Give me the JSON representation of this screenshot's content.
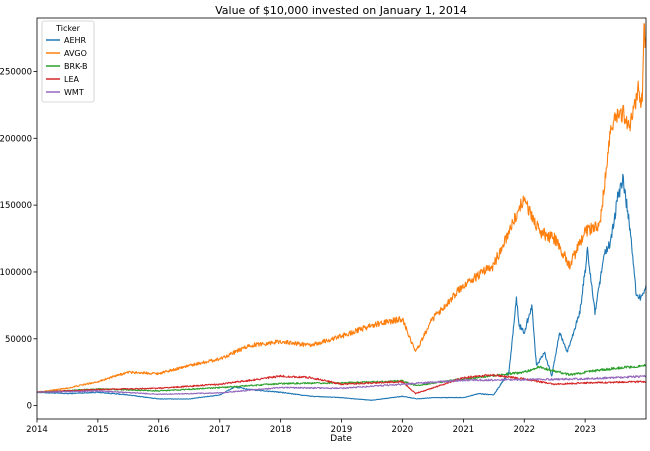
{
  "chart_data": {
    "type": "line",
    "title": "Value of $10,000 invested on January 1, 2014",
    "xlabel": "Date",
    "ylabel": "",
    "xlim": [
      "2014-01-01",
      "2024-01-01"
    ],
    "ylim": [
      -10000,
      290000
    ],
    "x_ticks": [
      "2014",
      "2015",
      "2016",
      "2017",
      "2018",
      "2019",
      "2020",
      "2021",
      "2022",
      "2023"
    ],
    "y_ticks": [
      0,
      50000,
      100000,
      150000,
      200000,
      250000
    ],
    "grid": false,
    "legend": {
      "title": "Ticker",
      "placement": "top-left"
    },
    "series": [
      {
        "name": "AEHR",
        "color": "#1f77b4",
        "points": [
          [
            "2014-01-01",
            10000
          ],
          [
            "2014-07-01",
            9000
          ],
          [
            "2015-01-01",
            10000
          ],
          [
            "2015-07-01",
            8000
          ],
          [
            "2016-01-01",
            5000
          ],
          [
            "2016-07-01",
            5000
          ],
          [
            "2017-01-01",
            8000
          ],
          [
            "2017-04-01",
            14000
          ],
          [
            "2017-07-01",
            12000
          ],
          [
            "2018-01-01",
            10000
          ],
          [
            "2018-07-01",
            7000
          ],
          [
            "2019-01-01",
            6000
          ],
          [
            "2019-07-01",
            4000
          ],
          [
            "2020-01-01",
            7000
          ],
          [
            "2020-04-01",
            5000
          ],
          [
            "2020-07-01",
            6000
          ],
          [
            "2021-01-01",
            6000
          ],
          [
            "2021-04-01",
            9000
          ],
          [
            "2021-07-01",
            8000
          ],
          [
            "2021-10-01",
            25000
          ],
          [
            "2021-11-15",
            80000
          ],
          [
            "2021-12-01",
            60000
          ],
          [
            "2022-01-01",
            55000
          ],
          [
            "2022-02-15",
            75000
          ],
          [
            "2022-03-15",
            30000
          ],
          [
            "2022-05-01",
            40000
          ],
          [
            "2022-06-15",
            22000
          ],
          [
            "2022-08-01",
            55000
          ],
          [
            "2022-09-15",
            40000
          ],
          [
            "2022-12-01",
            70000
          ],
          [
            "2023-01-15",
            115000
          ],
          [
            "2023-03-01",
            70000
          ],
          [
            "2023-05-01",
            115000
          ],
          [
            "2023-06-01",
            120000
          ],
          [
            "2023-07-15",
            155000
          ],
          [
            "2023-08-15",
            170000
          ],
          [
            "2023-10-01",
            130000
          ],
          [
            "2023-11-01",
            85000
          ],
          [
            "2023-12-01",
            80000
          ],
          [
            "2024-01-01",
            90000
          ]
        ]
      },
      {
        "name": "AVGO",
        "color": "#ff7f0e",
        "points": [
          [
            "2014-01-01",
            10000
          ],
          [
            "2014-07-01",
            13000
          ],
          [
            "2015-01-01",
            18000
          ],
          [
            "2015-07-01",
            25000
          ],
          [
            "2016-01-01",
            24000
          ],
          [
            "2016-07-01",
            30000
          ],
          [
            "2017-01-01",
            35000
          ],
          [
            "2017-07-01",
            45000
          ],
          [
            "2018-01-01",
            48000
          ],
          [
            "2018-07-01",
            45000
          ],
          [
            "2019-01-01",
            52000
          ],
          [
            "2019-07-01",
            60000
          ],
          [
            "2020-01-01",
            65000
          ],
          [
            "2020-03-20",
            40000
          ],
          [
            "2020-07-01",
            65000
          ],
          [
            "2021-01-01",
            90000
          ],
          [
            "2021-07-01",
            105000
          ],
          [
            "2022-01-01",
            155000
          ],
          [
            "2022-04-01",
            130000
          ],
          [
            "2022-07-01",
            125000
          ],
          [
            "2022-10-01",
            105000
          ],
          [
            "2023-01-01",
            130000
          ],
          [
            "2023-04-01",
            135000
          ],
          [
            "2023-06-01",
            205000
          ],
          [
            "2023-08-01",
            220000
          ],
          [
            "2023-10-01",
            210000
          ],
          [
            "2023-11-15",
            235000
          ],
          [
            "2023-12-10",
            225000
          ],
          [
            "2023-12-20",
            280000
          ],
          [
            "2024-01-01",
            275000
          ]
        ]
      },
      {
        "name": "BRK-B",
        "color": "#2ca02c",
        "points": [
          [
            "2014-01-01",
            10000
          ],
          [
            "2015-01-01",
            12500
          ],
          [
            "2016-01-01",
            11000
          ],
          [
            "2017-01-01",
            13500
          ],
          [
            "2018-01-01",
            16500
          ],
          [
            "2019-01-01",
            17000
          ],
          [
            "2020-01-01",
            18500
          ],
          [
            "2020-03-20",
            15000
          ],
          [
            "2021-01-01",
            20000
          ],
          [
            "2022-01-01",
            25000
          ],
          [
            "2022-04-01",
            29000
          ],
          [
            "2022-10-01",
            23000
          ],
          [
            "2023-01-01",
            25000
          ],
          [
            "2023-07-01",
            28000
          ],
          [
            "2024-01-01",
            30000
          ]
        ]
      },
      {
        "name": "LEA",
        "color": "#d62728",
        "points": [
          [
            "2014-01-01",
            10000
          ],
          [
            "2015-01-01",
            12000
          ],
          [
            "2016-01-01",
            13000
          ],
          [
            "2017-01-01",
            16000
          ],
          [
            "2018-01-01",
            22000
          ],
          [
            "2018-07-01",
            21000
          ],
          [
            "2019-01-01",
            16000
          ],
          [
            "2020-01-01",
            18000
          ],
          [
            "2020-03-20",
            9000
          ],
          [
            "2021-01-01",
            21000
          ],
          [
            "2021-07-01",
            23000
          ],
          [
            "2022-01-01",
            20000
          ],
          [
            "2022-07-01",
            16000
          ],
          [
            "2023-01-01",
            17000
          ],
          [
            "2024-01-01",
            18000
          ]
        ]
      },
      {
        "name": "WMT",
        "color": "#9467bd",
        "points": [
          [
            "2014-01-01",
            10000
          ],
          [
            "2015-01-01",
            11000
          ],
          [
            "2016-01-01",
            8500
          ],
          [
            "2017-01-01",
            9500
          ],
          [
            "2018-01-01",
            13500
          ],
          [
            "2019-01-01",
            13000
          ],
          [
            "2020-01-01",
            16000
          ],
          [
            "2021-01-01",
            19000
          ],
          [
            "2022-01-01",
            19500
          ],
          [
            "2023-01-01",
            20000
          ],
          [
            "2024-01-01",
            22000
          ]
        ]
      }
    ]
  }
}
